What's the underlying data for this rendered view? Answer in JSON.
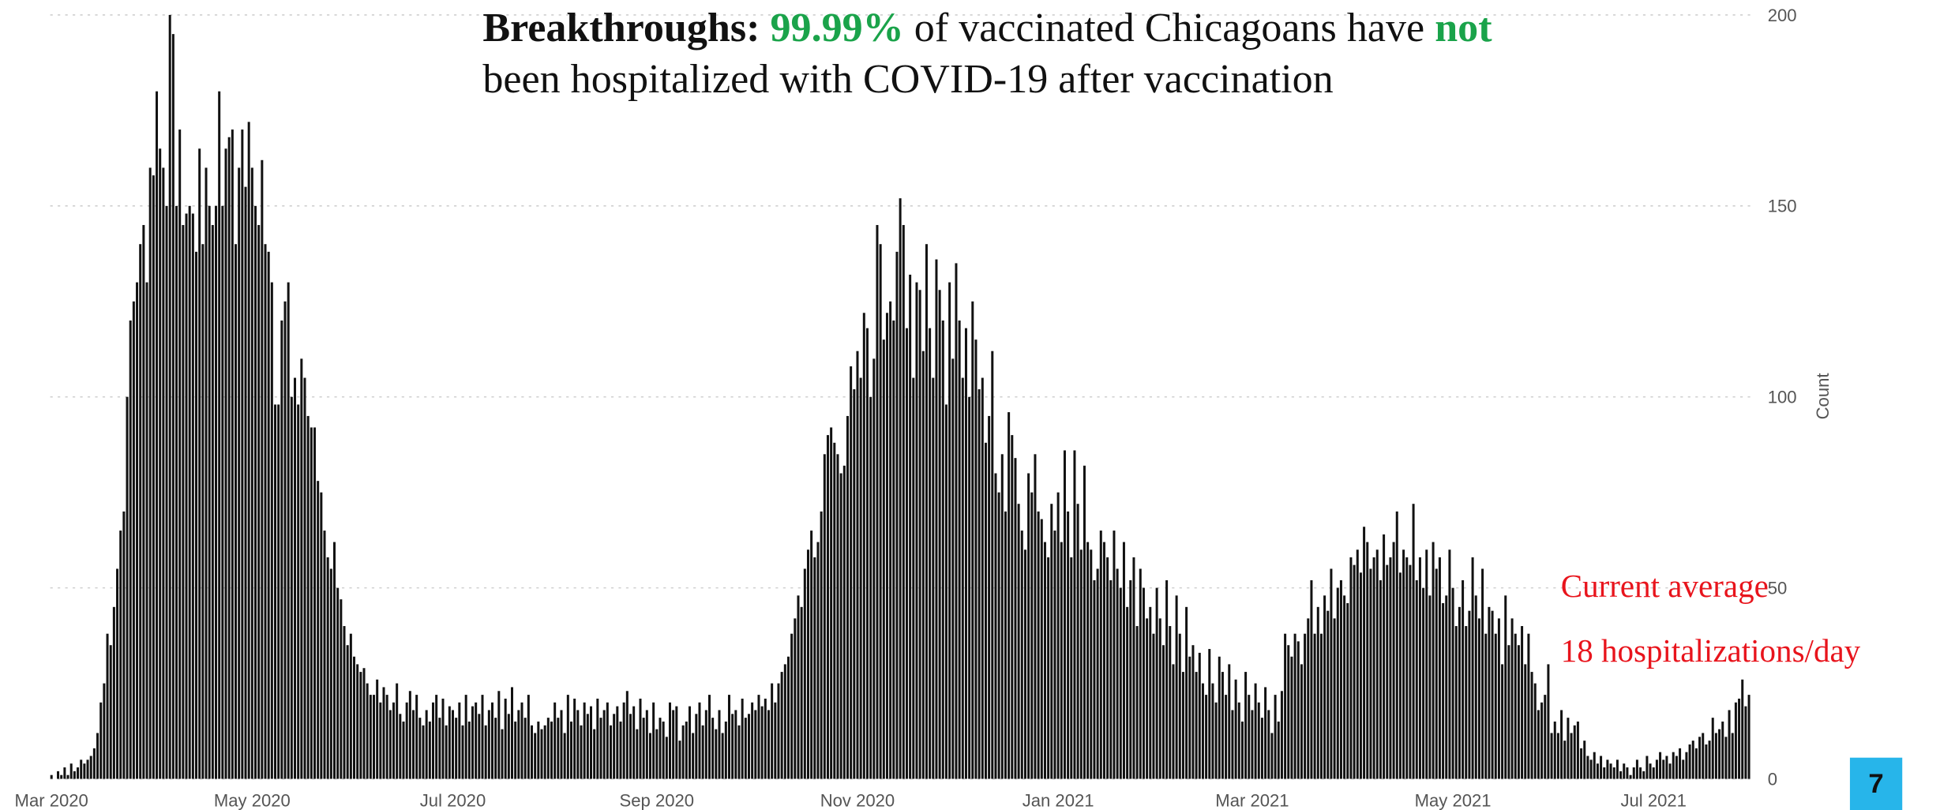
{
  "chart_data": {
    "type": "bar",
    "title": [
      "Breakthroughs:",
      "99.99%",
      "of vaccinated Chicagoans have",
      "not",
      "been hospitalized with COVID-19 after vaccination"
    ],
    "y_label": "Count",
    "annotations": [
      "Current average",
      "18 hospitalizations/day"
    ],
    "page_number": "7",
    "color": "#111111",
    "highlight_color": "#1aa34a",
    "annotation_color": "#e8141c",
    "grid": true,
    "ylim": [
      0,
      200
    ],
    "yticks": [
      0,
      50,
      100,
      150,
      200
    ],
    "categories": [
      "Mar 2020",
      null,
      null,
      null,
      null,
      null,
      null,
      null,
      null,
      null,
      null,
      null,
      null,
      null,
      null,
      null,
      null,
      null,
      null,
      null,
      null,
      null,
      null,
      null,
      null,
      null,
      null,
      null,
      null,
      null,
      null,
      null,
      null,
      null,
      null,
      null,
      null,
      null,
      null,
      null,
      null,
      null,
      null,
      null,
      null,
      null,
      null,
      null,
      null,
      null,
      null,
      null,
      null,
      null,
      null,
      null,
      null,
      null,
      null,
      null,
      null,
      "May 2020",
      null,
      null,
      null,
      null,
      null,
      null,
      null,
      null,
      null,
      null,
      null,
      null,
      null,
      null,
      null,
      null,
      null,
      null,
      null,
      null,
      null,
      null,
      null,
      null,
      null,
      null,
      null,
      null,
      null,
      null,
      null,
      null,
      null,
      null,
      null,
      null,
      null,
      null,
      null,
      null,
      null,
      null,
      null,
      null,
      null,
      null,
      null,
      null,
      null,
      null,
      null,
      null,
      null,
      null,
      null,
      null,
      null,
      null,
      null,
      null,
      "Jul 2020",
      null,
      null,
      null,
      null,
      null,
      null,
      null,
      null,
      null,
      null,
      null,
      null,
      null,
      null,
      null,
      null,
      null,
      null,
      null,
      null,
      null,
      null,
      null,
      null,
      null,
      null,
      null,
      null,
      null,
      null,
      null,
      null,
      null,
      null,
      null,
      null,
      null,
      null,
      null,
      null,
      null,
      null,
      null,
      null,
      null,
      null,
      null,
      null,
      null,
      null,
      null,
      null,
      null,
      null,
      null,
      null,
      null,
      null,
      null,
      null,
      null,
      "Sep 2020",
      null,
      null,
      null,
      null,
      null,
      null,
      null,
      null,
      null,
      null,
      null,
      null,
      null,
      null,
      null,
      null,
      null,
      null,
      null,
      null,
      null,
      null,
      null,
      null,
      null,
      null,
      null,
      null,
      null,
      null,
      null,
      null,
      null,
      null,
      null,
      null,
      null,
      null,
      null,
      null,
      null,
      null,
      null,
      null,
      null,
      null,
      null,
      null,
      null,
      null,
      null,
      null,
      null,
      null,
      null,
      null,
      null,
      null,
      null,
      null,
      "Nov 2020",
      null,
      null,
      null,
      null,
      null,
      null,
      null,
      null,
      null,
      null,
      null,
      null,
      null,
      null,
      null,
      null,
      null,
      null,
      null,
      null,
      null,
      null,
      null,
      null,
      null,
      null,
      null,
      null,
      null,
      null,
      null,
      null,
      null,
      null,
      null,
      null,
      null,
      null,
      null,
      null,
      null,
      null,
      null,
      null,
      null,
      null,
      null,
      null,
      null,
      null,
      null,
      null,
      null,
      null,
      null,
      null,
      null,
      null,
      null,
      null,
      "Jan 2021",
      null,
      null,
      null,
      null,
      null,
      null,
      null,
      null,
      null,
      null,
      null,
      null,
      null,
      null,
      null,
      null,
      null,
      null,
      null,
      null,
      null,
      null,
      null,
      null,
      null,
      null,
      null,
      null,
      null,
      null,
      null,
      null,
      null,
      null,
      null,
      null,
      null,
      null,
      null,
      null,
      null,
      null,
      null,
      null,
      null,
      null,
      null,
      null,
      null,
      null,
      null,
      null,
      null,
      null,
      null,
      null,
      null,
      null,
      "Mar 2021",
      null,
      null,
      null,
      null,
      null,
      null,
      null,
      null,
      null,
      null,
      null,
      null,
      null,
      null,
      null,
      null,
      null,
      null,
      null,
      null,
      null,
      null,
      null,
      null,
      null,
      null,
      null,
      null,
      null,
      null,
      null,
      null,
      null,
      null,
      null,
      null,
      null,
      null,
      null,
      null,
      null,
      null,
      null,
      null,
      null,
      null,
      null,
      null,
      null,
      null,
      null,
      null,
      null,
      null,
      null,
      null,
      null,
      null,
      null,
      null,
      "May 2021",
      null,
      null,
      null,
      null,
      null,
      null,
      null,
      null,
      null,
      null,
      null,
      null,
      null,
      null,
      null,
      null,
      null,
      null,
      null,
      null,
      null,
      null,
      null,
      null,
      null,
      null,
      null,
      null,
      null,
      null,
      null,
      null,
      null,
      null,
      null,
      null,
      null,
      null,
      null,
      null,
      null,
      null,
      null,
      null,
      null,
      null,
      null,
      null,
      null,
      null,
      null,
      null,
      null,
      null,
      null,
      null,
      null,
      null,
      null,
      null,
      "Jul 2021",
      null,
      null,
      null,
      null,
      null,
      null,
      null,
      null,
      null,
      null,
      null,
      null,
      null,
      null,
      null,
      null,
      null,
      null,
      null,
      null,
      null,
      null,
      null,
      null,
      null,
      null,
      null,
      null,
      null
    ],
    "values": [
      1,
      0,
      2,
      1,
      3,
      1,
      4,
      2,
      3,
      5,
      4,
      5,
      6,
      8,
      12,
      20,
      25,
      38,
      35,
      45,
      55,
      65,
      70,
      100,
      120,
      125,
      130,
      140,
      145,
      130,
      160,
      158,
      180,
      165,
      160,
      150,
      200,
      195,
      150,
      170,
      145,
      148,
      150,
      148,
      138,
      165,
      140,
      160,
      150,
      145,
      150,
      180,
      150,
      165,
      168,
      170,
      140,
      160,
      170,
      155,
      172,
      160,
      150,
      145,
      162,
      140,
      138,
      130,
      98,
      98,
      120,
      125,
      130,
      100,
      105,
      98,
      110,
      105,
      95,
      92,
      92,
      78,
      75,
      65,
      58,
      55,
      62,
      50,
      47,
      40,
      35,
      38,
      32,
      30,
      28,
      29,
      25,
      22,
      22,
      26,
      20,
      24,
      22,
      18,
      20,
      25,
      17,
      15,
      20,
      23,
      18,
      22,
      16,
      14,
      18,
      15,
      20,
      22,
      16,
      21,
      14,
      19,
      18,
      16,
      20,
      14,
      22,
      15,
      19,
      20,
      17,
      22,
      14,
      18,
      20,
      16,
      23,
      13,
      21,
      17,
      24,
      15,
      18,
      20,
      16,
      22,
      14,
      12,
      15,
      13,
      14,
      16,
      15,
      20,
      16,
      18,
      12,
      22,
      15,
      21,
      18,
      14,
      20,
      17,
      19,
      13,
      21,
      16,
      18,
      20,
      14,
      17,
      19,
      15,
      20,
      23,
      17,
      19,
      13,
      21,
      16,
      18,
      12,
      20,
      13,
      16,
      15,
      11,
      20,
      18,
      19,
      10,
      14,
      15,
      19,
      12,
      17,
      20,
      14,
      18,
      22,
      16,
      13,
      18,
      12,
      15,
      22,
      17,
      18,
      14,
      21,
      16,
      17,
      20,
      18,
      22,
      19,
      21,
      18,
      25,
      20,
      25,
      28,
      30,
      32,
      38,
      42,
      48,
      45,
      55,
      60,
      65,
      58,
      62,
      70,
      85,
      90,
      92,
      88,
      85,
      80,
      82,
      95,
      108,
      102,
      112,
      105,
      122,
      118,
      100,
      110,
      145,
      140,
      115,
      122,
      125,
      120,
      138,
      152,
      145,
      118,
      132,
      105,
      130,
      128,
      112,
      140,
      118,
      105,
      136,
      128,
      120,
      98,
      130,
      110,
      135,
      120,
      105,
      118,
      100,
      125,
      115,
      102,
      105,
      88,
      95,
      112,
      80,
      75,
      85,
      70,
      96,
      90,
      84,
      72,
      65,
      60,
      80,
      75,
      85,
      70,
      68,
      62,
      58,
      72,
      65,
      75,
      62,
      86,
      70,
      58,
      86,
      72,
      60,
      82,
      62,
      60,
      52,
      55,
      65,
      62,
      58,
      52,
      65,
      55,
      50,
      62,
      45,
      52,
      58,
      40,
      55,
      50,
      42,
      45,
      38,
      50,
      42,
      35,
      52,
      40,
      30,
      48,
      38,
      28,
      45,
      32,
      35,
      28,
      33,
      25,
      22,
      34,
      25,
      20,
      32,
      28,
      22,
      30,
      18,
      26,
      20,
      15,
      28,
      22,
      18,
      25,
      20,
      16,
      24,
      18,
      12,
      22,
      15,
      23,
      38,
      35,
      32,
      38,
      36,
      30,
      38,
      42,
      52,
      38,
      45,
      38,
      48,
      44,
      55,
      42,
      50,
      52,
      48,
      46,
      58,
      56,
      60,
      54,
      66,
      62,
      55,
      58,
      60,
      52,
      64,
      56,
      58,
      62,
      70,
      54,
      60,
      58,
      56,
      72,
      52,
      58,
      50,
      60,
      48,
      62,
      55,
      58,
      46,
      48,
      60,
      50,
      40,
      45,
      52,
      40,
      44,
      58,
      48,
      42,
      55,
      38,
      45,
      44,
      38,
      42,
      30,
      48,
      35,
      42,
      38,
      35,
      40,
      30,
      38,
      28,
      25,
      18,
      20,
      22,
      30,
      12,
      15,
      12,
      18,
      10,
      16,
      12,
      14,
      15,
      8,
      10,
      6,
      5,
      7,
      4,
      6,
      3,
      5,
      4,
      3,
      5,
      2,
      4,
      3,
      1,
      3,
      5,
      3,
      2,
      6,
      4,
      3,
      5,
      7,
      5,
      6,
      4,
      7,
      6,
      8,
      5,
      7,
      9,
      10,
      8,
      11,
      12,
      9,
      10,
      16,
      12,
      13,
      15,
      11,
      18,
      12,
      20,
      21,
      26,
      19,
      22
    ]
  }
}
